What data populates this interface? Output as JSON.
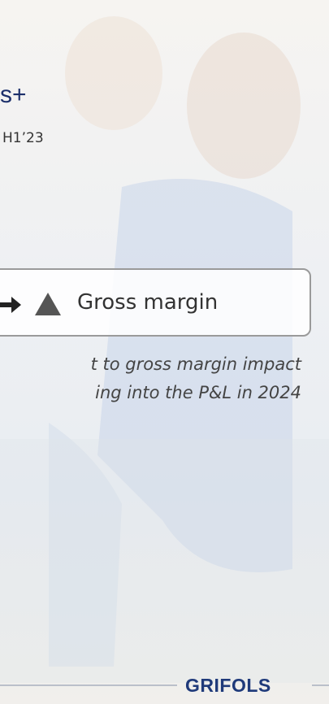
{
  "header": {
    "figure": "s+",
    "period": "H1’23"
  },
  "callout": {
    "label": "Gross margin"
  },
  "note": {
    "lines": [
      "t to gross margin impact",
      "ing into the P&L in 2024"
    ]
  },
  "footer": {
    "logo": "GRIFOLS"
  }
}
